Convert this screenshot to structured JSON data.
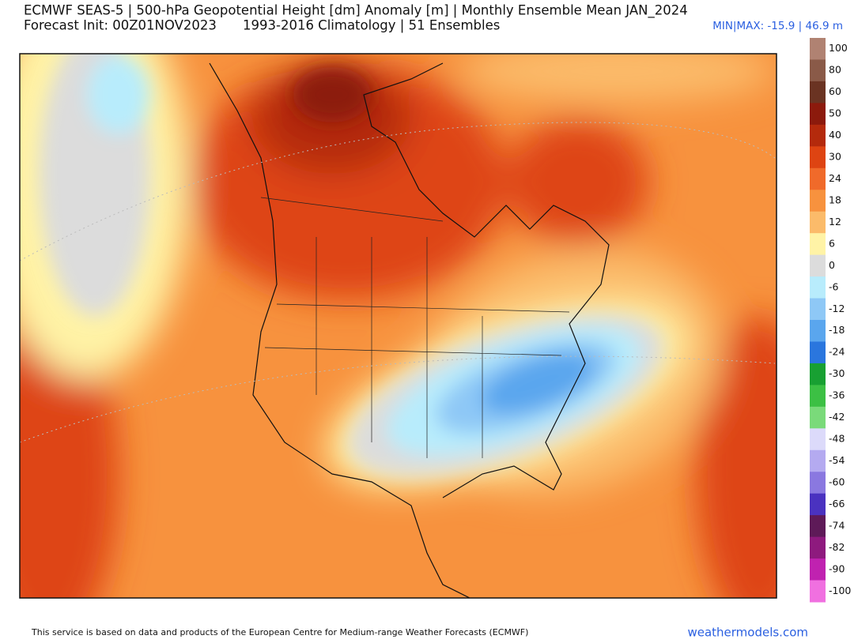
{
  "header": {
    "title": "ECMWF SEAS-5 | 500-hPa Geopotential Height [dm] Anomaly [m] | Monthly Ensemble Mean JAN_2024",
    "init": "Forecast Init: 00Z01NOV2023",
    "climatology": "1993-2016 Climatology | 51 Ensembles",
    "minmax": "MIN|MAX: -15.9 | 46.9 m"
  },
  "colorbar": {
    "levels": [
      100,
      80,
      60,
      50,
      40,
      30,
      24,
      18,
      12,
      6,
      0,
      -6,
      -12,
      -18,
      -24,
      -30,
      -36,
      -42,
      -48,
      -54,
      -60,
      -66,
      -74,
      -82,
      -90,
      -100
    ],
    "colors": [
      "#b08272",
      "#8a5a48",
      "#6a3322",
      "#8c1a0c",
      "#b42a0c",
      "#de4412",
      "#f06a2a",
      "#f7923e",
      "#fbbb6a",
      "#fff3a6",
      "#dcdcdc",
      "#b8ecfc",
      "#8ec8f6",
      "#5aa6ee",
      "#2a76de",
      "#18a032",
      "#3cc044",
      "#7ada7a",
      "#dcdafa",
      "#b4aaf0",
      "#8a78e0",
      "#4a32c0",
      "#5e1a58",
      "#8e1a7e",
      "#c022b0",
      "#f070e0"
    ]
  },
  "footer": {
    "notice": "This service is based on data and products of the European Centre for Medium-range Weather Forecasts (ECMWF)",
    "site": "weathermodels.com"
  }
}
